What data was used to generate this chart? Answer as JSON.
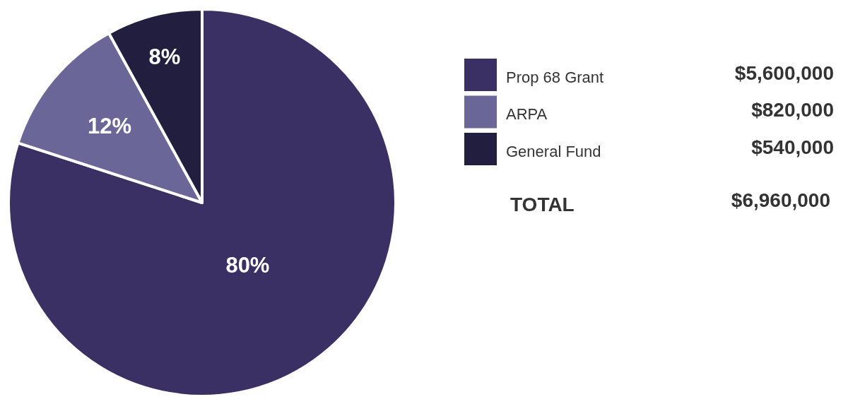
{
  "chart_data": {
    "type": "pie",
    "categories": [
      "Prop 68 Grant",
      "ARPA",
      "General Fund"
    ],
    "values": [
      80,
      12,
      8
    ],
    "value_labels": [
      "80%",
      "12%",
      "8%"
    ],
    "colors": [
      "#3b3064",
      "#6b6698",
      "#221e40"
    ],
    "legend": "right",
    "annotations": [
      "$5,600,000",
      "$820,000",
      "$540,000",
      "TOTAL",
      "$6,960,000"
    ]
  }
}
